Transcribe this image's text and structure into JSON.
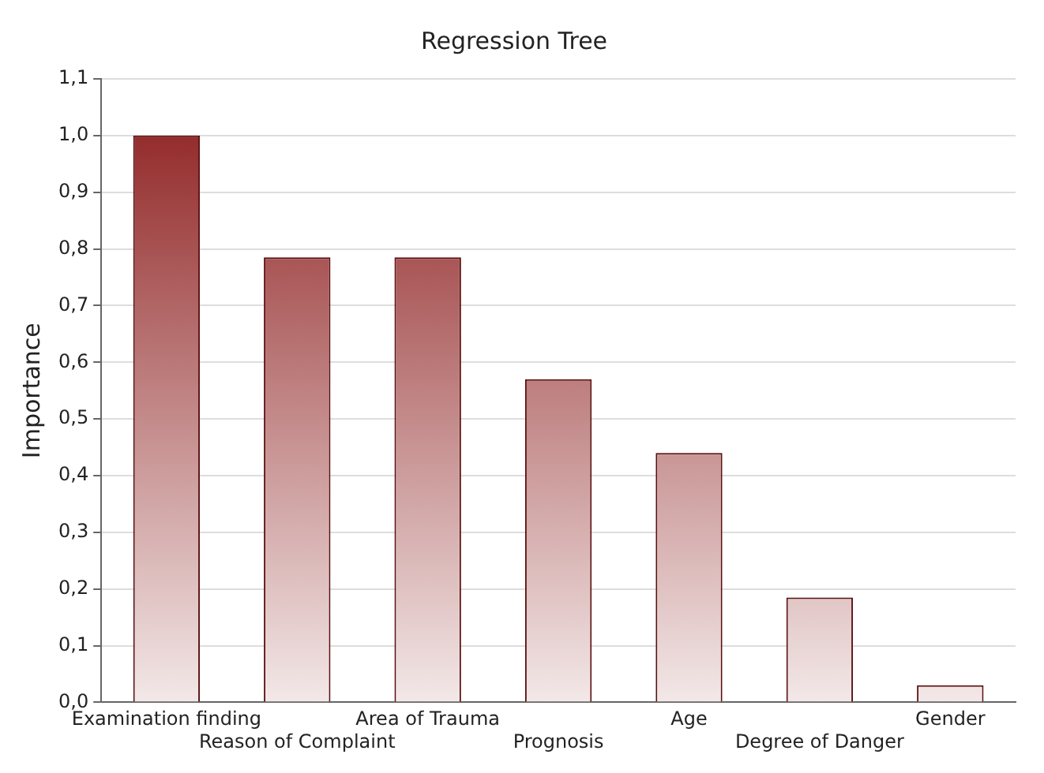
{
  "chart_data": {
    "type": "bar",
    "title": "Regression Tree",
    "ylabel": "Importance",
    "categories": [
      "Examination finding",
      "Reason of Complaint",
      "Area of Trauma",
      "Prognosis",
      "Age",
      "Degree of Danger",
      "Gender"
    ],
    "values": [
      1.0,
      0.785,
      0.785,
      0.57,
      0.44,
      0.185,
      0.03
    ],
    "color": "#8b1a1a",
    "ylim": [
      0,
      1.1
    ],
    "yticks": [
      {
        "value": 0,
        "label": "0,0"
      },
      {
        "value": 0.1,
        "label": "0,1"
      },
      {
        "value": 0.2,
        "label": "0,2"
      },
      {
        "value": 0.3,
        "label": "0,3"
      },
      {
        "value": 0.4,
        "label": "0,4"
      },
      {
        "value": 0.5,
        "label": "0,5"
      },
      {
        "value": 0.6,
        "label": "0,6"
      },
      {
        "value": 0.7,
        "label": "0,7"
      },
      {
        "value": 0.8,
        "label": "0,8"
      },
      {
        "value": 0.9,
        "label": "0,9"
      },
      {
        "value": 1.0,
        "label": "1,0"
      },
      {
        "value": 1.1,
        "label": "1,1"
      }
    ],
    "grid": "y",
    "legend": false
  }
}
